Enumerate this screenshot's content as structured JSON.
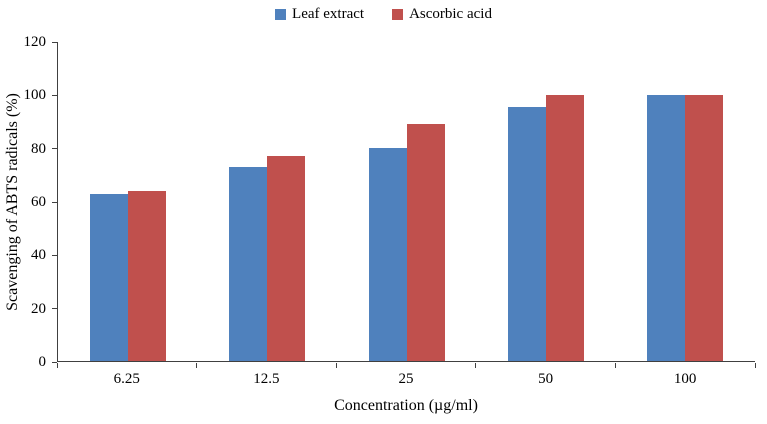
{
  "chart_data": {
    "type": "bar",
    "title": "",
    "categories": [
      "6.25",
      "12.5",
      "25",
      "50",
      "100"
    ],
    "series": [
      {
        "name": "Leaf extract",
        "color": "#4F81BD",
        "values": [
          63,
          73,
          80,
          95.5,
          100
        ]
      },
      {
        "name": "Ascorbic acid",
        "color": "#C0504D",
        "values": [
          64,
          77,
          89,
          100,
          100
        ]
      }
    ],
    "xlabel": "Concentration (µg/ml)",
    "ylabel": "Scavenging of ABTS radicals (%)",
    "ylim": [
      0,
      120
    ],
    "yticks": [
      0,
      20,
      40,
      60,
      80,
      100,
      120
    ],
    "grid": false,
    "legend_position": "top"
  }
}
